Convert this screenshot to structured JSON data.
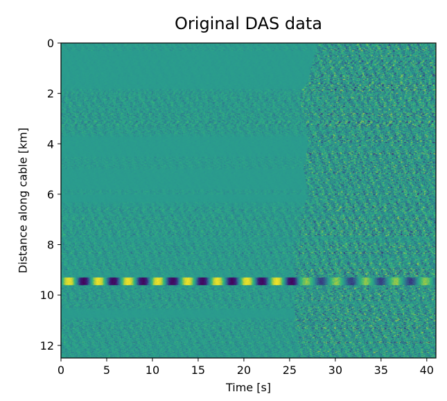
{
  "chart_data": {
    "type": "heatmap",
    "title": "Original DAS data",
    "xlabel": "Time [s]",
    "ylabel": "Distance along cable [km]",
    "xlim": [
      0,
      41
    ],
    "ylim": [
      12.5,
      0
    ],
    "x_ticks": [
      0,
      5,
      10,
      15,
      20,
      25,
      30,
      35,
      40
    ],
    "y_ticks": [
      0,
      2,
      4,
      6,
      8,
      10,
      12
    ],
    "colormap": "viridis",
    "colors": {
      "background": "#2a9c8e",
      "low": "#3b0f70",
      "mid": "#21918c",
      "high": "#fde725"
    },
    "grid": false,
    "legend": "none",
    "wavefront_arrival_s": [
      [
        0,
        28.0
      ],
      [
        1.5,
        27.0
      ],
      [
        2.0,
        26.0
      ],
      [
        3.0,
        26.5
      ],
      [
        4.0,
        27.0
      ],
      [
        5.0,
        26.5
      ],
      [
        6.0,
        27.0
      ],
      [
        7.0,
        26.0
      ],
      [
        8.0,
        25.5
      ],
      [
        9.0,
        25.5
      ],
      [
        10.0,
        25.5
      ],
      [
        11.0,
        25.5
      ],
      [
        12.0,
        26.0
      ],
      [
        12.5,
        26.0
      ]
    ],
    "quiet_bands_km": [
      [
        0.3,
        1.8
      ],
      [
        3.7,
        4.5
      ],
      [
        5.0,
        5.8
      ],
      [
        6.0,
        6.3
      ],
      [
        10.6,
        10.9
      ]
    ],
    "noisy_bands_km": [
      [
        1.9,
        3.6
      ],
      [
        6.5,
        9.0
      ],
      [
        9.6,
        10.5
      ],
      [
        11.0,
        12.5
      ]
    ],
    "oscillation_band_km": [
      9.3,
      9.6
    ]
  }
}
